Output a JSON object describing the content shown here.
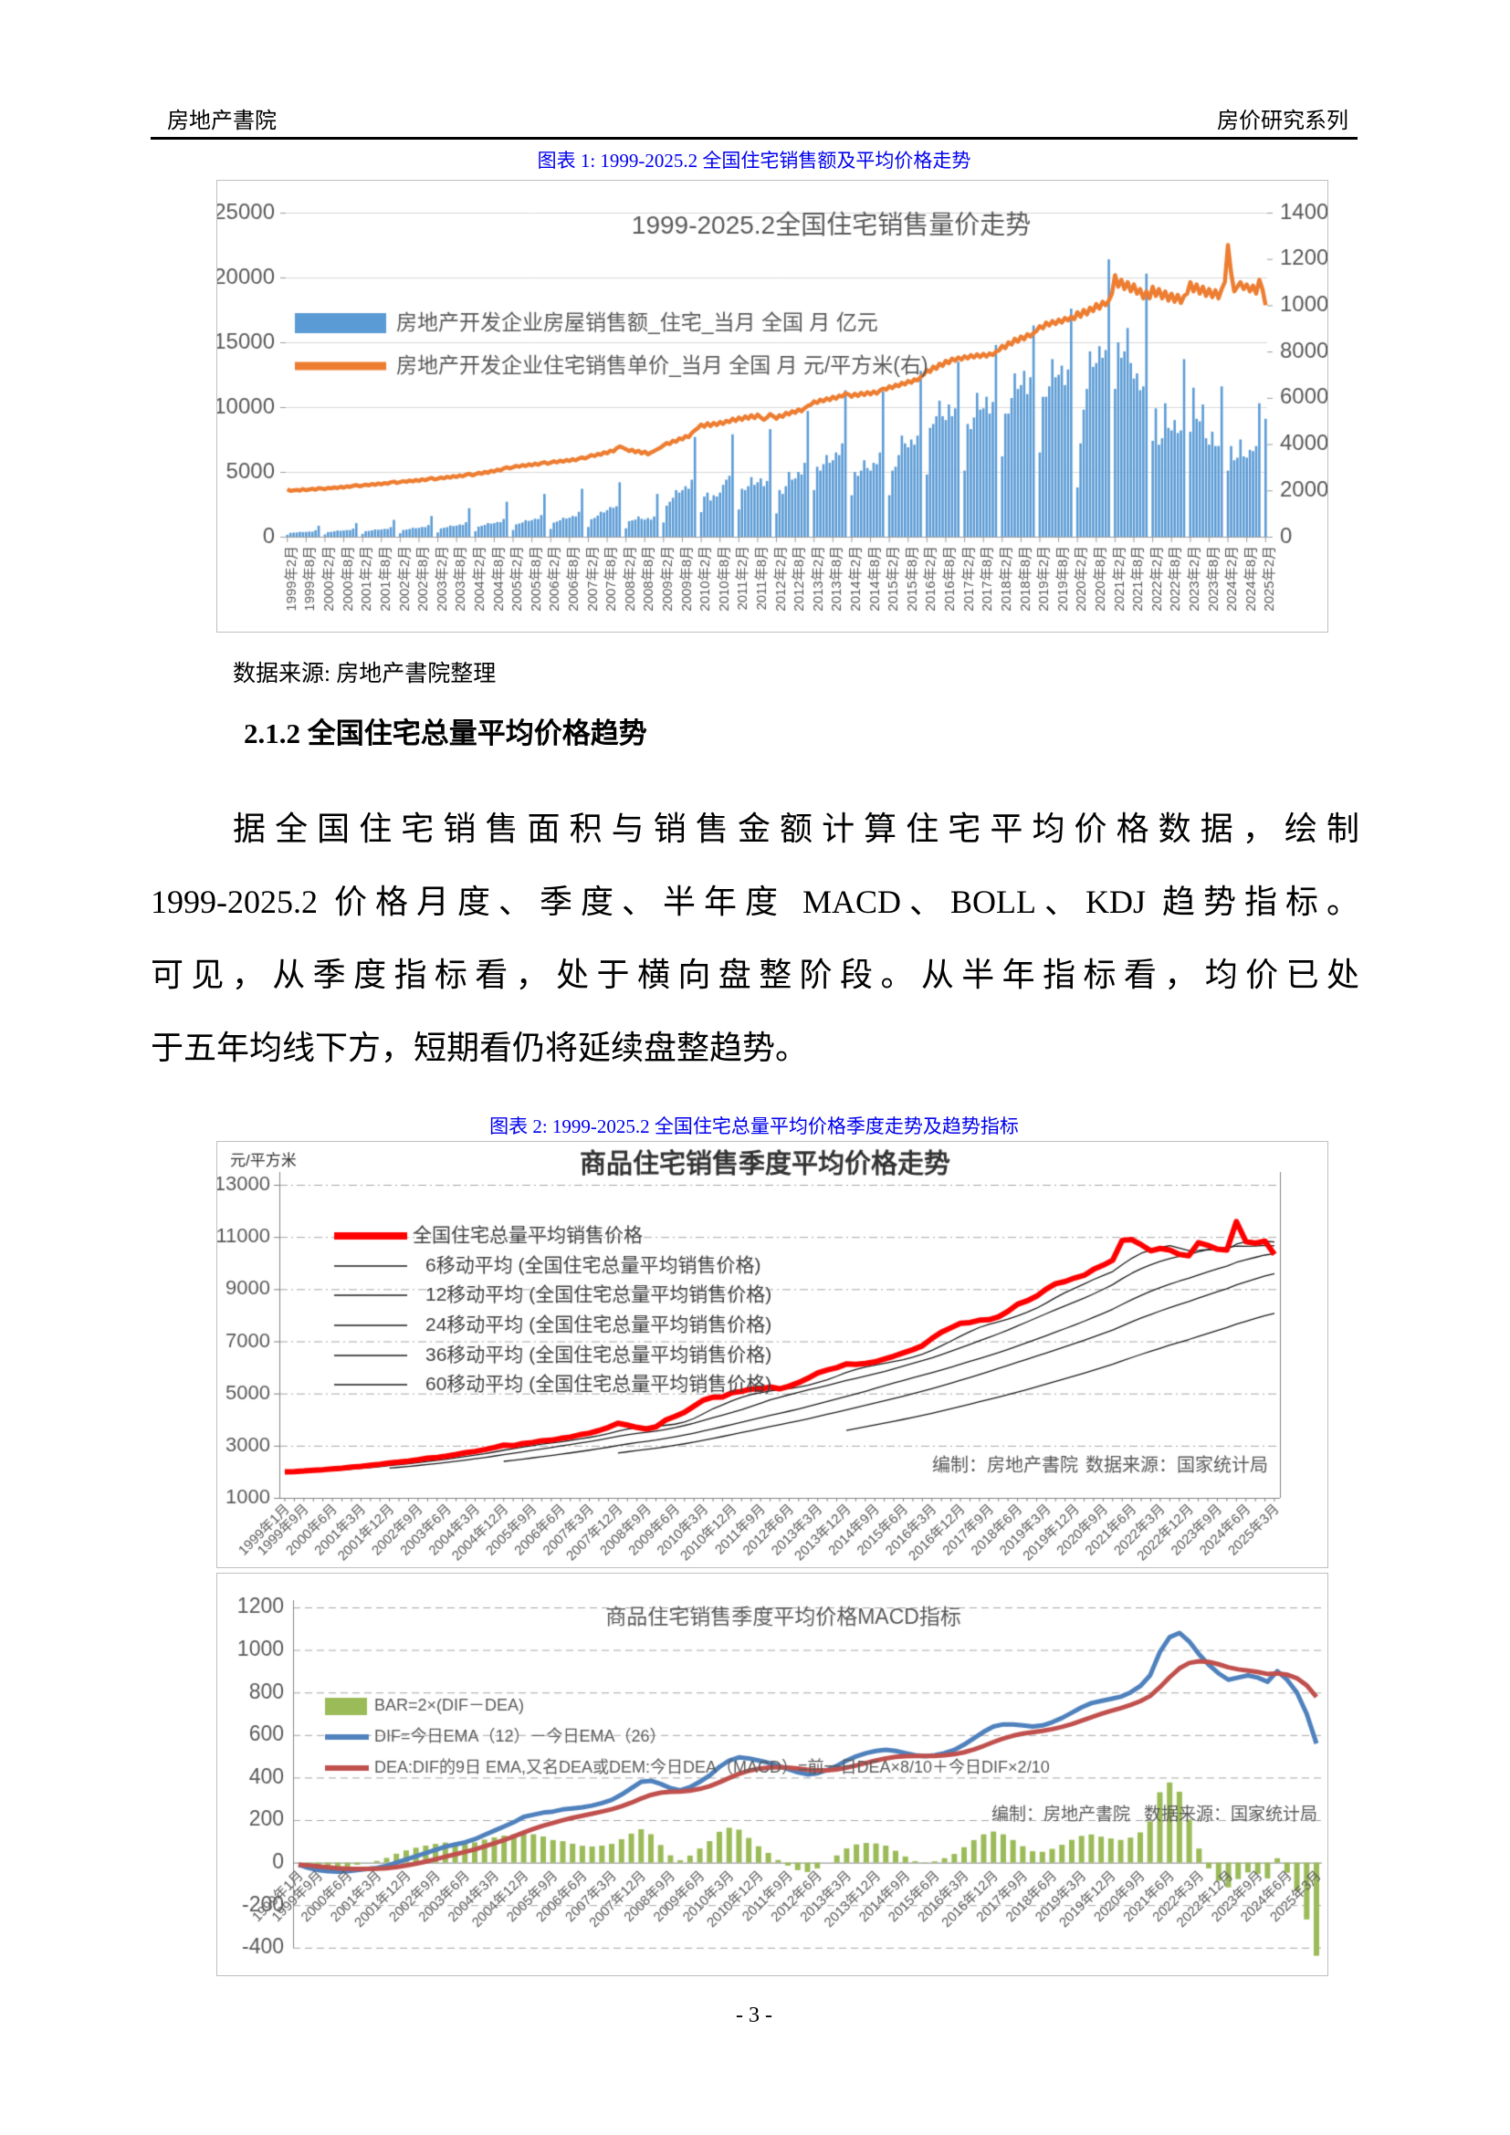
{
  "header": {
    "left": "房地产書院",
    "right": "房价研究系列"
  },
  "figure1_caption": "图表 1: 1999-2025.2 全国住宅销售额及平均价格走势",
  "source_note": "数据来源: 房地产書院整理",
  "section_heading": "2.1.2 全国住宅总量平均价格趋势",
  "paragraph": {
    "lines": [
      "据全国住宅销售面积与销售金额计算住宅平均价格数据，绘制",
      "1999-2025.2 价格月度、季度、半年度 MACD、BOLL、KDJ 趋势指标。",
      "可见，从季度指标看，处于横向盘整阶段。从半年指标看，均价已处",
      "于五年均线下方，短期看仍将延续盘整趋势。"
    ]
  },
  "figure2_caption": "图表 2: 1999-2025.2 全国住宅总量平均价格季度走势及趋势指标",
  "footer": {
    "page_number": "- 3 -"
  },
  "colors": {
    "caption_blue": "#0000EE",
    "bar_blue": "#5B9BD5",
    "line_orange": "#ED7D31",
    "main_red": "#FF0000",
    "ma_black": "#1a1a1a",
    "macd_bar_green": "#9BBB59",
    "dif_blue": "#4F81BD",
    "dea_red": "#C0504D",
    "grid_gray": "#D9D9D9",
    "axis_gray": "#808080",
    "text_gray": "#595959"
  },
  "chart_data": [
    {
      "type": "bar",
      "title": "1999-2025.2全国住宅销售量价走势",
      "left_axis": {
        "min": 0,
        "max": 25000,
        "step": 5000
      },
      "right_axis": {
        "min": 0,
        "max": 14000,
        "step": 2000
      },
      "x_tick_labels": [
        "1999年2月",
        "1999年8月",
        "2000年2月",
        "2000年8月",
        "2001年2月",
        "2001年8月",
        "2002年2月",
        "2002年8月",
        "2003年2月",
        "2003年8月",
        "2004年2月",
        "2004年8月",
        "2005年2月",
        "2005年8月",
        "2006年2月",
        "2006年8月",
        "2007年2月",
        "2007年8月",
        "2008年2月",
        "2008年8月",
        "2009年2月",
        "2009年8月",
        "2010年2月",
        "2010年8月",
        "2011年2月",
        "2011年8月",
        "2012年2月",
        "2012年8月",
        "2013年2月",
        "2013年8月",
        "2014年2月",
        "2014年8月",
        "2015年2月",
        "2015年8月",
        "2016年2月",
        "2016年8月",
        "2017年2月",
        "2017年8月",
        "2018年2月",
        "2018年8月",
        "2019年2月",
        "2019年8月",
        "2020年2月",
        "2020年8月",
        "2021年2月",
        "2021年8月",
        "2022年2月",
        "2022年8月",
        "2023年2月",
        "2023年8月",
        "2024年2月",
        "2024年8月",
        "2025年2月"
      ],
      "series": [
        {
          "name": "房地产开发企业房屋销售额_住宅_当月 全国 月 亿元",
          "type": "bar",
          "axis": "left",
          "color": "#5B9BD5",
          "values": [
            150,
            300,
            320,
            330,
            380,
            360,
            370,
            400,
            390,
            500,
            850,
            0,
            180,
            360,
            380,
            420,
            480,
            460,
            480,
            520,
            510,
            630,
            1050,
            0,
            220,
            430,
            450,
            490,
            560,
            540,
            560,
            610,
            600,
            740,
            1300,
            0,
            270,
            520,
            550,
            600,
            690,
            660,
            690,
            750,
            740,
            900,
            1600,
            0,
            330,
            640,
            690,
            740,
            860,
            820,
            860,
            940,
            910,
            1120,
            2200,
            0,
            420,
            780,
            840,
            910,
            1050,
            1010,
            1050,
            1140,
            1120,
            1370,
            2700,
            0,
            520,
            950,
            1020,
            1100,
            1280,
            1220,
            1280,
            1390,
            1360,
            1670,
            3300,
            0,
            600,
            1090,
            1170,
            1270,
            1470,
            1400,
            1470,
            1600,
            1560,
            1920,
            3700,
            0,
            750,
            1350,
            1450,
            1630,
            1930,
            1870,
            2050,
            2290,
            2230,
            2350,
            4200,
            0,
            650,
            1200,
            1260,
            1320,
            1560,
            1380,
            1320,
            1440,
            1320,
            1560,
            3300,
            0,
            1100,
            2400,
            2700,
            3000,
            3600,
            3400,
            3600,
            3900,
            3700,
            4400,
            7700,
            0,
            1900,
            3100,
            3400,
            2800,
            3200,
            3100,
            3400,
            4000,
            4400,
            4700,
            7900,
            0,
            2100,
            3700,
            3600,
            3900,
            4600,
            4000,
            4200,
            4500,
            3900,
            4300,
            8300,
            0,
            1800,
            3600,
            3300,
            3900,
            5000,
            4400,
            4500,
            5000,
            4800,
            5700,
            9700,
            0,
            3600,
            5400,
            5100,
            5600,
            6300,
            5700,
            5900,
            6500,
            6300,
            7200,
            11300,
            0,
            3200,
            5000,
            4700,
            5100,
            5900,
            5300,
            5100,
            5700,
            5600,
            6500,
            11200,
            0,
            3200,
            5100,
            5400,
            6300,
            7800,
            7200,
            6900,
            7500,
            7100,
            7800,
            12800,
            0,
            4800,
            8400,
            8700,
            9300,
            10500,
            9300,
            9000,
            10200,
            9300,
            9900,
            13500,
            0,
            5100,
            8700,
            8300,
            9200,
            11100,
            9800,
            9900,
            10800,
            9500,
            10400,
            14800,
            0,
            6200,
            9500,
            9500,
            10700,
            12600,
            11400,
            11700,
            12800,
            11000,
            12300,
            16300,
            0,
            6500,
            10800,
            10800,
            11600,
            13700,
            12300,
            12500,
            13200,
            11700,
            12900,
            17600,
            0,
            3800,
            7200,
            9800,
            11400,
            14300,
            13100,
            13400,
            14700,
            13800,
            14400,
            21400,
            0,
            11400,
            15000,
            13800,
            14300,
            16100,
            13400,
            12200,
            12600,
            11300,
            11600,
            20300,
            0,
            7400,
            9900,
            7100,
            7600,
            10300,
            8400,
            8200,
            9000,
            8000,
            8200,
            13700,
            0,
            8100,
            11500,
            9100,
            8900,
            10200,
            7600,
            7100,
            8100,
            7000,
            7000,
            11600,
            0,
            5100,
            7000,
            5900,
            6100,
            7500,
            6200,
            6100,
            6700,
            6600,
            7000,
            10300,
            0,
            9100
          ]
        },
        {
          "name": "房地产开发企业住宅销售单价_当月 全国 月 元/平方米(右)",
          "type": "line",
          "axis": "right",
          "color": "#ED7D31",
          "values": [
            2050,
            1980,
            2000,
            2020,
            1990,
            2060,
            2010,
            2040,
            2070,
            2030,
            2100,
            2080,
            2050,
            2110,
            2090,
            2130,
            2100,
            2160,
            2120,
            2180,
            2150,
            2200,
            2230,
            2180,
            2210,
            2250,
            2220,
            2280,
            2240,
            2300,
            2260,
            2320,
            2290,
            2350,
            2380,
            2320,
            2360,
            2400,
            2370,
            2430,
            2390,
            2450,
            2410,
            2480,
            2440,
            2500,
            2540,
            2470,
            2510,
            2560,
            2520,
            2590,
            2550,
            2620,
            2580,
            2650,
            2610,
            2680,
            2720,
            2650,
            2700,
            2760,
            2720,
            2800,
            2760,
            2850,
            2810,
            2900,
            2860,
            2950,
            3000,
            2950,
            3000,
            3060,
            3020,
            3100,
            3050,
            3130,
            3080,
            3160,
            3110,
            3180,
            3220,
            3150,
            3200,
            3260,
            3210,
            3290,
            3240,
            3320,
            3270,
            3350,
            3300,
            3380,
            3430,
            3380,
            3450,
            3530,
            3480,
            3580,
            3540,
            3650,
            3600,
            3720,
            3680,
            3820,
            3900,
            3850,
            3780,
            3700,
            3760,
            3650,
            3720,
            3600,
            3680,
            3560,
            3640,
            3700,
            3780,
            3850,
            3950,
            4050,
            4000,
            4150,
            4100,
            4250,
            4200,
            4350,
            4300,
            4480,
            4600,
            4700,
            4850,
            4750,
            4900,
            4780,
            4920,
            4820,
            4960,
            4870,
            5010,
            4950,
            5100,
            5000,
            5150,
            5050,
            5200,
            5100,
            5250,
            5120,
            5280,
            5150,
            5050,
            5150,
            5300,
            5200,
            5100,
            5250,
            5180,
            5350,
            5280,
            5420,
            5350,
            5500,
            5420,
            5560,
            5650,
            5700,
            5850,
            5780,
            5920,
            5850,
            5980,
            5900,
            6050,
            5960,
            6100,
            6050,
            6200,
            6150,
            6050,
            6180,
            6080,
            6220,
            6120,
            6250,
            6150,
            6280,
            6180,
            6320,
            6400,
            6350,
            6500,
            6420,
            6570,
            6500,
            6650,
            6580,
            6730,
            6650,
            6800,
            6750,
            6900,
            7000,
            7200,
            7120,
            7350,
            7250,
            7480,
            7380,
            7600,
            7500,
            7700,
            7600,
            7750,
            7650,
            7800,
            7700,
            7850,
            7740,
            7880,
            7760,
            7900,
            7780,
            7920,
            7850,
            8000,
            8050,
            8250,
            8150,
            8400,
            8300,
            8550,
            8420,
            8650,
            8520,
            8750,
            8650,
            8800,
            8900,
            9100,
            9000,
            9250,
            9120,
            9320,
            9180,
            9380,
            9250,
            9450,
            9350,
            9500,
            9400,
            9700,
            9500,
            9800,
            9600,
            9900,
            9750,
            10050,
            9850,
            10150,
            10000,
            10200,
            10500,
            11300,
            10800,
            11100,
            10700,
            11000,
            10600,
            10900,
            10500,
            10700,
            10300,
            10600,
            10300,
            10800,
            10400,
            10700,
            10300,
            10600,
            10200,
            10500,
            10150,
            10450,
            10100,
            10400,
            10500,
            11000,
            10600,
            10900,
            10500,
            10800,
            10400,
            10700,
            10350,
            10650,
            10300,
            10700,
            11000,
            12600,
            11400,
            10600,
            10800,
            11000,
            10700,
            10900,
            10600,
            10850,
            10500,
            11100,
            10700,
            10000
          ]
        }
      ]
    },
    {
      "type": "line",
      "title": "商品住宅销售季度平均价格走势",
      "y_unit": "元/平方米",
      "y_axis": {
        "min": 1000,
        "max": 13000,
        "step": 2000
      },
      "x_tick_labels": [
        "1999年1月",
        "1999年9月",
        "2000年6月",
        "2001年3月",
        "2001年12月",
        "2002年9月",
        "2003年6月",
        "2004年3月",
        "2004年12月",
        "2005年9月",
        "2006年6月",
        "2007年3月",
        "2007年12月",
        "2008年9月",
        "2009年6月",
        "2010年3月",
        "2010年12月",
        "2011年9月",
        "2012年6月",
        "2013年3月",
        "2013年12月",
        "2014年9月",
        "2015年6月",
        "2016年3月",
        "2016年12月",
        "2017年9月",
        "2018年6月",
        "2019年3月",
        "2019年12月",
        "2020年9月",
        "2021年6月",
        "2022年3月",
        "2022年12月",
        "2023年9月",
        "2024年6月",
        "2025年3月"
      ],
      "main_series": {
        "name": "全国住宅总量平均销售价格",
        "color": "#FF0000",
        "values": [
          2000,
          2010,
          2030,
          2060,
          2080,
          2110,
          2140,
          2180,
          2210,
          2250,
          2290,
          2340,
          2370,
          2410,
          2460,
          2520,
          2550,
          2600,
          2660,
          2730,
          2780,
          2850,
          2930,
          3020,
          3000,
          3080,
          3120,
          3190,
          3210,
          3280,
          3330,
          3420,
          3480,
          3580,
          3700,
          3860,
          3790,
          3700,
          3640,
          3720,
          3980,
          4120,
          4280,
          4520,
          4750,
          4860,
          4870,
          5030,
          5080,
          5180,
          5160,
          5250,
          5180,
          5280,
          5420,
          5590,
          5790,
          5900,
          5990,
          6130,
          6120,
          6150,
          6210,
          6320,
          6430,
          6560,
          6680,
          6830,
          7110,
          7350,
          7520,
          7690,
          7720,
          7810,
          7830,
          7940,
          8150,
          8420,
          8550,
          8730,
          9000,
          9210,
          9290,
          9430,
          9530,
          9760,
          9920,
          10110,
          10870,
          10900,
          10700,
          10470,
          10560,
          10500,
          10330,
          10280,
          10780,
          10680,
          10530,
          10500,
          11590,
          10820,
          10760,
          10840,
          10330
        ]
      },
      "moving_averages": [
        {
          "period": 6,
          "name": "6移动平均 (全国住宅总量平均销售价格)"
        },
        {
          "period": 12,
          "name": "12移动平均 (全国住宅总量平均销售价格)"
        },
        {
          "period": 24,
          "name": "24移动平均 (全国住宅总量平均销售价格)"
        },
        {
          "period": 36,
          "name": "36移动平均 (全国住宅总量平均销售价格)"
        },
        {
          "period": 60,
          "name": "60移动平均 (全国住宅总量平均销售价格)"
        }
      ],
      "annotation_left": "编制：房地产書院",
      "annotation_right": "数据来源：国家统计局"
    },
    {
      "type": "bar",
      "title": "商品住宅销售季度平均价格MACD指标",
      "y_axis": {
        "min": -400,
        "max": 1200,
        "step": 200
      },
      "legend": [
        {
          "label": "BAR=2×(DIF－DEA)",
          "color": "#9BBB59",
          "kind": "bar"
        },
        {
          "label": "DIF=今日EMA（12）－今日EMA（26）",
          "color": "#4F81BD",
          "kind": "line"
        },
        {
          "label": "DEA:DIF的9日 EMA,又名DEA或DEM:今日DEA（MACD）=前一日DEA×8/10＋今日DIF×2/10",
          "color": "#C0504D",
          "kind": "line"
        }
      ],
      "dif_values": [
        -10,
        -25,
        -35,
        -40,
        -42,
        -40,
        -35,
        -30,
        -25,
        -15,
        0,
        15,
        30,
        45,
        60,
        75,
        85,
        95,
        110,
        130,
        150,
        170,
        190,
        215,
        225,
        235,
        240,
        250,
        255,
        260,
        268,
        280,
        295,
        320,
        350,
        380,
        385,
        370,
        350,
        340,
        355,
        380,
        410,
        450,
        480,
        495,
        490,
        480,
        470,
        455,
        440,
        425,
        415,
        420,
        435,
        455,
        480,
        500,
        515,
        525,
        530,
        525,
        515,
        505,
        500,
        505,
        515,
        530,
        555,
        585,
        615,
        640,
        650,
        650,
        645,
        640,
        645,
        660,
        680,
        705,
        730,
        750,
        760,
        770,
        780,
        800,
        830,
        880,
        990,
        1060,
        1080,
        1040,
        980,
        930,
        890,
        860,
        870,
        880,
        870,
        850,
        900,
        860,
        800,
        700,
        560
      ],
      "dea_rule": "dea[i] = dea[i-1]*8/10 + dif[i]*2/10",
      "bar_rule": "bar[i] = 2*(dif[i]-dea[i])",
      "annotation_left": "编制：房地产書院",
      "annotation_right": "数据来源：国家统计局"
    }
  ]
}
